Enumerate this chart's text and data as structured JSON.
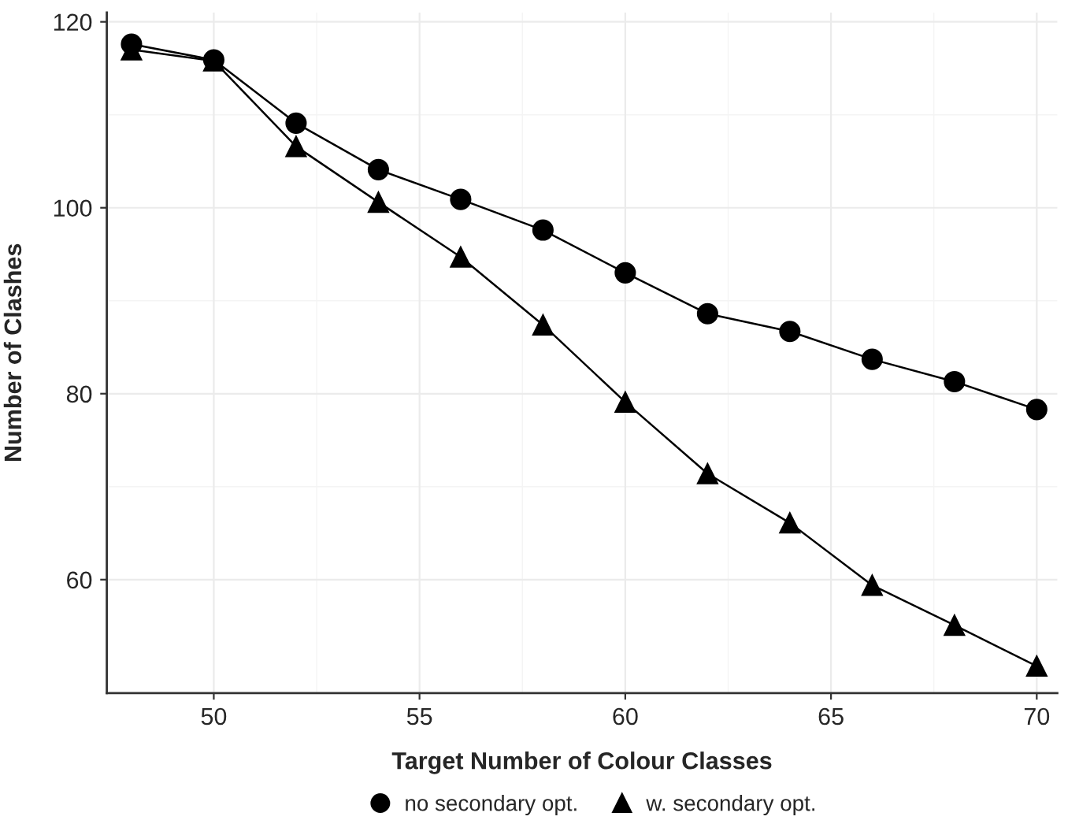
{
  "chart_data": {
    "type": "line",
    "xlabel": "Target Number of Colour Classes",
    "ylabel": "Number of Clashes",
    "x": [
      48,
      50,
      52,
      54,
      56,
      58,
      60,
      62,
      64,
      66,
      68,
      70
    ],
    "series": [
      {
        "name": "no secondary opt.",
        "color": "#000000",
        "marker": "circle",
        "values": [
          117.6,
          115.9,
          109.1,
          104.1,
          100.9,
          97.6,
          93.0,
          88.6,
          86.7,
          83.7,
          81.3,
          78.3
        ]
      },
      {
        "name": "w. secondary opt.",
        "color": "#000000",
        "marker": "triangle",
        "values": [
          117.0,
          115.8,
          106.6,
          100.6,
          94.7,
          87.4,
          79.1,
          71.4,
          66.1,
          59.4,
          55.1,
          50.7
        ]
      }
    ],
    "xlim": [
      47.4,
      70.5
    ],
    "xticks": [
      50,
      55,
      60,
      65,
      70
    ],
    "ylim": [
      47.8,
      121
    ],
    "yticks": [
      60,
      80,
      100,
      120
    ],
    "grid": true,
    "legend": "bottom",
    "line_style": "solid"
  }
}
